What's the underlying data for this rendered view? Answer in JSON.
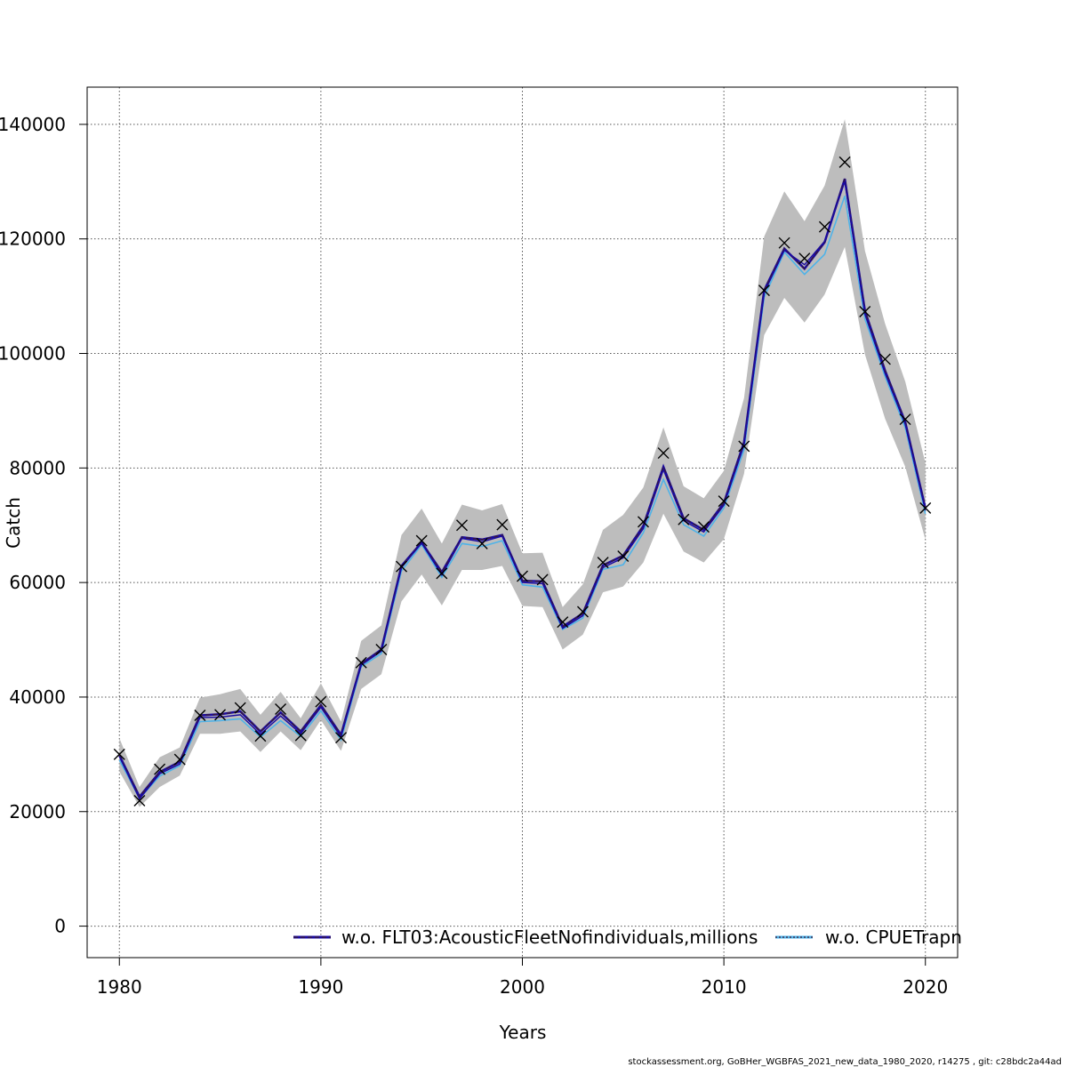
{
  "chart_data": {
    "type": "line",
    "title": "",
    "xlabel": "Years",
    "ylabel": "Catch",
    "xlim": [
      1978.4,
      2021.6
    ],
    "ylim": [
      -5500,
      146500
    ],
    "x_ticks": [
      1980,
      1990,
      2000,
      2010,
      2020
    ],
    "y_ticks": [
      0,
      20000,
      40000,
      60000,
      80000,
      100000,
      120000,
      140000
    ],
    "grid": true,
    "legend_position": "bottom",
    "colors": {
      "band": "#bdbdbd",
      "main_line": "#1a0aa0",
      "dark_line": "#3a1a3a",
      "light_line": "#4fb3e8",
      "observed_marker": "#000000"
    },
    "years": [
      1980,
      1981,
      1982,
      1983,
      1984,
      1985,
      1986,
      1987,
      1988,
      1989,
      1990,
      1991,
      1992,
      1993,
      1994,
      1995,
      1996,
      1997,
      1998,
      1999,
      2000,
      2001,
      2002,
      2003,
      2004,
      2005,
      2006,
      2007,
      2008,
      2009,
      2010,
      2011,
      2012,
      2013,
      2014,
      2015,
      2016,
      2017,
      2018,
      2019,
      2020
    ],
    "observed": [
      30000,
      21900,
      27400,
      29100,
      36800,
      36900,
      38100,
      33200,
      37900,
      33300,
      39200,
      32900,
      46000,
      48300,
      62800,
      67300,
      61600,
      70000,
      66800,
      70100,
      61100,
      60500,
      53100,
      54900,
      63500,
      64600,
      70600,
      82600,
      71000,
      69700,
      74200,
      83800,
      111000,
      119300,
      116600,
      122100,
      133400,
      107300,
      99000,
      88500,
      73000
    ],
    "lower": [
      27000,
      20800,
      24300,
      26300,
      33600,
      33600,
      34000,
      30400,
      34000,
      30700,
      36000,
      30600,
      41400,
      44000,
      56700,
      61400,
      56000,
      62200,
      62200,
      62900,
      55900,
      55700,
      48300,
      50900,
      58300,
      59300,
      63500,
      72000,
      65400,
      63500,
      67600,
      79000,
      103200,
      109700,
      105400,
      110300,
      118600,
      99800,
      88600,
      80200,
      67500
    ],
    "upper": [
      32800,
      24300,
      29500,
      31200,
      39900,
      40500,
      41400,
      36900,
      40900,
      36300,
      42400,
      35700,
      49800,
      52500,
      68300,
      72900,
      66800,
      73600,
      72600,
      73700,
      65100,
      65200,
      55700,
      59700,
      69200,
      71800,
      76600,
      87100,
      76800,
      74700,
      79500,
      92200,
      120400,
      128300,
      123100,
      129300,
      140900,
      117900,
      105200,
      95100,
      80900
    ],
    "series": [
      {
        "name": "w.o. FLT03:AcousticFleetNofindividuals,millions",
        "values": [
          29800,
          22600,
          26900,
          28700,
          36800,
          37000,
          37500,
          34000,
          37300,
          34000,
          38600,
          33400,
          45800,
          48300,
          62900,
          67000,
          61800,
          67900,
          67500,
          68300,
          60300,
          60200,
          52300,
          54600,
          63000,
          64700,
          69900,
          80200,
          71200,
          69200,
          73900,
          84500,
          111000,
          118300,
          114800,
          119400,
          130500,
          107400,
          97000,
          88000,
          73000
        ]
      },
      {
        "name": "w.o. CPUETrapn",
        "values": [
          29600,
          22200,
          26600,
          28300,
          36400,
          36500,
          36900,
          33500,
          36700,
          33600,
          38200,
          33000,
          45600,
          48000,
          62600,
          66900,
          61300,
          67700,
          67100,
          68100,
          60000,
          59800,
          52000,
          54200,
          62600,
          64300,
          69400,
          79700,
          70800,
          68800,
          73500,
          84000,
          110600,
          118000,
          115500,
          119600,
          130000,
          106800,
          96500,
          87600,
          72600
        ]
      },
      {
        "name": "",
        "values": [
          29000,
          22300,
          26200,
          28000,
          35700,
          35900,
          36200,
          33000,
          35900,
          33100,
          37600,
          32500,
          45300,
          47600,
          62000,
          66600,
          60900,
          66800,
          66300,
          67300,
          59600,
          59200,
          51800,
          53800,
          62300,
          63100,
          68700,
          78000,
          70100,
          68100,
          73000,
          83200,
          109800,
          117700,
          113800,
          117300,
          127500,
          106000,
          96000,
          87000,
          72000
        ]
      }
    ],
    "legend": [
      {
        "label": "w.o. FLT03:AcousticFleetNofindividuals,millions"
      },
      {
        "label": "w.o. CPUETrapn"
      }
    ]
  },
  "footer": {
    "text": "stockassessment.org, GoBHer_WGBFAS_2021_new_data_1980_2020, r14275 , git: c28bdc2a44ad"
  }
}
